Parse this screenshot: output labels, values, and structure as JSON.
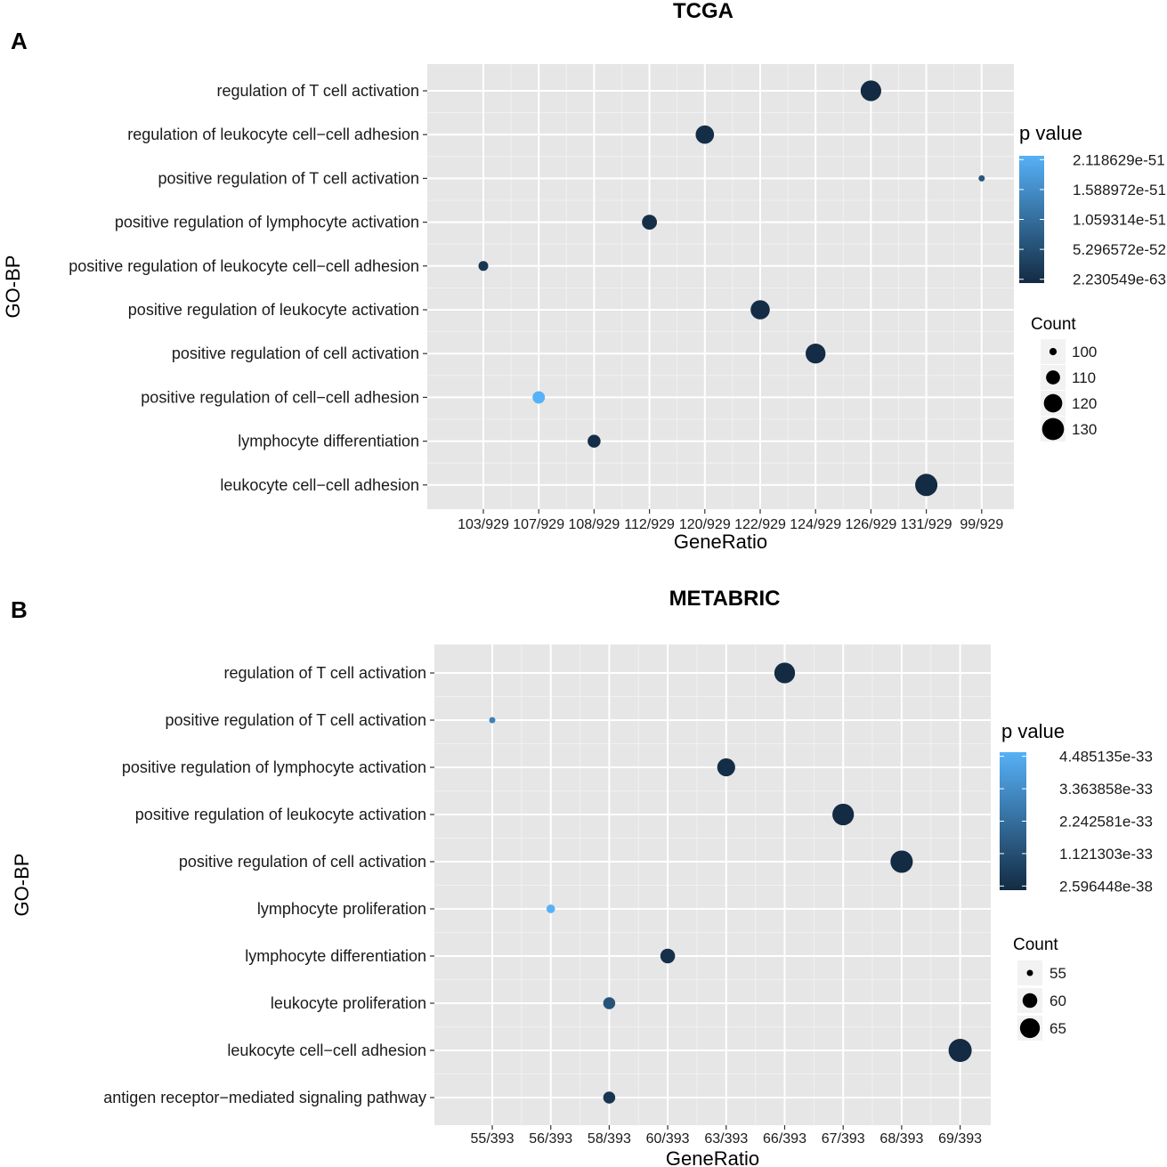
{
  "colors": {
    "panel_bg": "#e6e6e6",
    "grid": "#ffffff",
    "low": "#132b43",
    "high": "#56b1f7"
  },
  "chart_data": [
    {
      "type": "scatter",
      "panel_letter": "A",
      "title": "TCGA",
      "xlabel": "GeneRatio",
      "ylabel": "GO-BP",
      "x_categories": [
        "103/929",
        "107/929",
        "108/929",
        "112/929",
        "120/929",
        "122/929",
        "124/929",
        "126/929",
        "131/929",
        "99/929"
      ],
      "y_categories": [
        "regulation of T cell activation",
        "regulation of leukocyte cell−cell adhesion",
        "positive regulation of T cell activation",
        "positive regulation of lymphocyte activation",
        "positive regulation of leukocyte cell−cell adhesion",
        "positive regulation of leukocyte activation",
        "positive regulation of cell activation",
        "positive regulation of cell−cell adhesion",
        "lymphocyte differentiation",
        "leukocyte cell−cell adhesion"
      ],
      "points": [
        {
          "term": "regulation of T cell activation",
          "ratio": "126/929",
          "count": 126,
          "p_frac": 0.0
        },
        {
          "term": "regulation of leukocyte cell−cell adhesion",
          "ratio": "120/929",
          "count": 120,
          "p_frac": 0.02
        },
        {
          "term": "positive regulation of T cell activation",
          "ratio": "99/929",
          "count": 99,
          "p_frac": 0.32
        },
        {
          "term": "positive regulation of lymphocyte activation",
          "ratio": "112/929",
          "count": 112,
          "p_frac": 0.03
        },
        {
          "term": "positive regulation of leukocyte cell−cell adhesion",
          "ratio": "103/929",
          "count": 103,
          "p_frac": 0.08
        },
        {
          "term": "positive regulation of leukocyte activation",
          "ratio": "122/929",
          "count": 122,
          "p_frac": 0.01
        },
        {
          "term": "positive regulation of cell activation",
          "ratio": "124/929",
          "count": 124,
          "p_frac": 0.01
        },
        {
          "term": "positive regulation of cell−cell adhesion",
          "ratio": "107/929",
          "count": 107,
          "p_frac": 1.0
        },
        {
          "term": "lymphocyte differentiation",
          "ratio": "108/929",
          "count": 108,
          "p_frac": 0.02
        },
        {
          "term": "leukocyte cell−cell adhesion",
          "ratio": "131/929",
          "count": 131,
          "p_frac": 0.0
        }
      ],
      "count_range": [
        99,
        131
      ],
      "legend": {
        "color_title": "p value",
        "color_labels": [
          "2.118629e-51",
          "1.588972e-51",
          "1.059314e-51",
          "5.296572e-52",
          "2.230549e-63"
        ],
        "count_title": "Count",
        "count_values": [
          100,
          110,
          120,
          130
        ]
      }
    },
    {
      "type": "scatter",
      "panel_letter": "B",
      "title": "METABRIC",
      "xlabel": "GeneRatio",
      "ylabel": "GO-BP",
      "x_categories": [
        "55/393",
        "56/393",
        "58/393",
        "60/393",
        "63/393",
        "66/393",
        "67/393",
        "68/393",
        "69/393"
      ],
      "y_categories": [
        "regulation of T cell activation",
        "positive regulation of T cell activation",
        "positive regulation of lymphocyte activation",
        "positive regulation of leukocyte activation",
        "positive regulation of cell activation",
        "lymphocyte proliferation",
        "lymphocyte differentiation",
        "leukocyte proliferation",
        "leukocyte cell−cell adhesion",
        "antigen receptor−mediated signaling pathway"
      ],
      "points": [
        {
          "term": "regulation of T cell activation",
          "ratio": "66/393",
          "count": 66,
          "p_frac": 0.0
        },
        {
          "term": "positive regulation of T cell activation",
          "ratio": "55/393",
          "count": 55,
          "p_frac": 0.65
        },
        {
          "term": "positive regulation of lymphocyte activation",
          "ratio": "63/393",
          "count": 63,
          "p_frac": 0.02
        },
        {
          "term": "positive regulation of leukocyte activation",
          "ratio": "67/393",
          "count": 67,
          "p_frac": 0.0
        },
        {
          "term": "positive regulation of cell activation",
          "ratio": "68/393",
          "count": 68,
          "p_frac": 0.0
        },
        {
          "term": "lymphocyte proliferation",
          "ratio": "56/393",
          "count": 56,
          "p_frac": 1.0
        },
        {
          "term": "lymphocyte differentiation",
          "ratio": "60/393",
          "count": 60,
          "p_frac": 0.04
        },
        {
          "term": "leukocyte proliferation",
          "ratio": "58/393",
          "count": 58,
          "p_frac": 0.3
        },
        {
          "term": "leukocyte cell−cell adhesion",
          "ratio": "69/393",
          "count": 69,
          "p_frac": 0.0
        },
        {
          "term": "antigen receptor−mediated signaling pathway",
          "ratio": "58/393",
          "count": 58,
          "p_frac": 0.08
        }
      ],
      "count_range": [
        55,
        69
      ],
      "legend": {
        "color_title": "p value",
        "color_labels": [
          "4.485135e-33",
          "3.363858e-33",
          "2.242581e-33",
          "1.121303e-33",
          "2.596448e-38"
        ],
        "count_title": "Count",
        "count_values": [
          55,
          60,
          65
        ]
      }
    }
  ]
}
